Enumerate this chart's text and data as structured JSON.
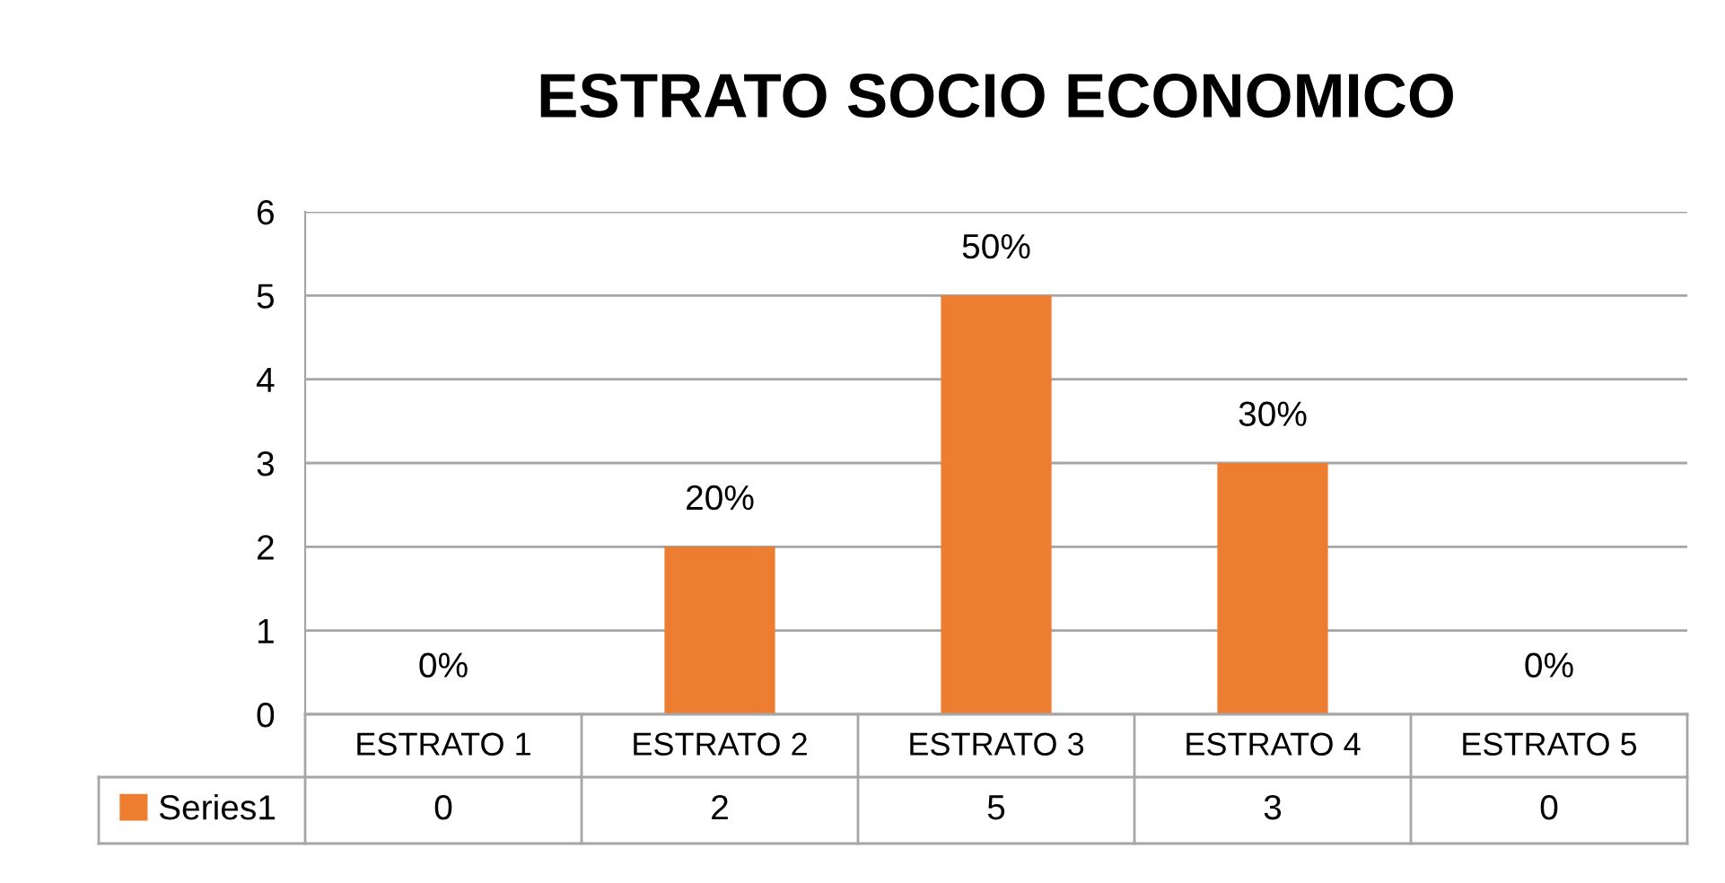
{
  "chart_data": {
    "type": "bar",
    "title": "ESTRATO SOCIO ECONOMICO",
    "categories": [
      "ESTRATO 1",
      "ESTRATO 2",
      "ESTRATO 3",
      "ESTRATO 4",
      "ESTRATO 5"
    ],
    "series": [
      {
        "name": "Series1",
        "color": "#ed7d31",
        "values": [
          0,
          2,
          5,
          3,
          0
        ],
        "value_labels": [
          "0",
          "2",
          "5",
          "3",
          "0"
        ]
      }
    ],
    "annotations": [
      {
        "text": "0%",
        "x": "ESTRATO 1",
        "y": 0
      },
      {
        "text": "20%",
        "x": "ESTRATO 2",
        "y": 2
      },
      {
        "text": "50%",
        "x": "ESTRATO 3",
        "y": 5
      },
      {
        "text": "30%",
        "x": "ESTRATO 4",
        "y": 3
      },
      {
        "text": "0%",
        "x": "ESTRATO 5",
        "y": 0
      }
    ],
    "ylim": [
      0,
      6
    ],
    "yticks": [
      0,
      1,
      2,
      3,
      4,
      5,
      6
    ],
    "grid": "y",
    "legend": "bottom"
  }
}
